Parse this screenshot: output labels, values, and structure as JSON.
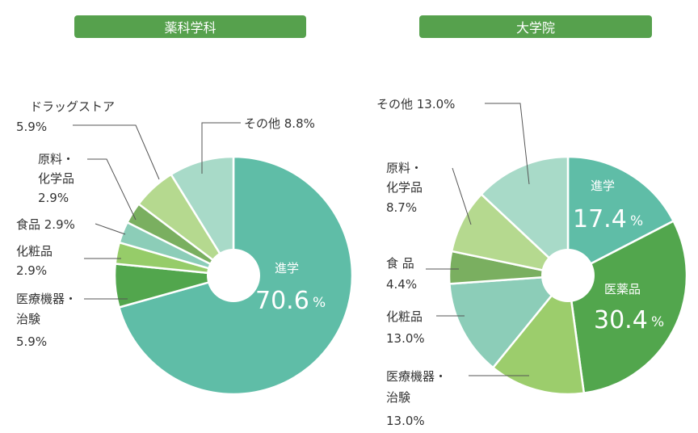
{
  "chart_data": [
    {
      "type": "pie",
      "title": "薬科学科",
      "slices": [
        {
          "label": "進学",
          "value": 70.6,
          "display": "70.6",
          "unit": "%",
          "color": "#5fbda7"
        },
        {
          "label": "医療機器・治験",
          "value": 5.9,
          "display": "5.9%",
          "color": "#52a64d"
        },
        {
          "label": "化粧品",
          "value": 2.9,
          "display": "2.9%",
          "color": "#96cc69"
        },
        {
          "label": "食品",
          "value": 2.9,
          "display": "2.9%",
          "color": "#8ccdb8"
        },
        {
          "label": "原料・化学品",
          "value": 2.9,
          "display": "2.9%",
          "color": "#7aaf60"
        },
        {
          "label": "ドラッグストア",
          "value": 5.9,
          "display": "5.9%",
          "color": "#b5d98f"
        },
        {
          "label": "その他",
          "value": 8.8,
          "display": "8.8%",
          "color": "#a8dac8"
        }
      ]
    },
    {
      "type": "pie",
      "title": "大学院",
      "slices": [
        {
          "label": "進学",
          "value": 17.4,
          "display": "17.4",
          "unit": "%",
          "color": "#5fbda7"
        },
        {
          "label": "医薬品",
          "value": 30.4,
          "display": "30.4",
          "unit": "%",
          "color": "#52a64d"
        },
        {
          "label": "医療機器・治験",
          "value": 13.0,
          "display": "13.0%",
          "color": "#9ccd6c"
        },
        {
          "label": "化粧品",
          "value": 13.0,
          "display": "13.0%",
          "color": "#8ccdb8"
        },
        {
          "label": "食品",
          "value": 4.4,
          "display": "4.4%",
          "color": "#7aaf60"
        },
        {
          "label": "原料・化学品",
          "value": 8.7,
          "display": "8.7%",
          "color": "#b5d98f"
        },
        {
          "label": "その他",
          "value": 13.0,
          "display": "13.0%",
          "color": "#a8dac8"
        }
      ]
    }
  ],
  "labels": {
    "left": {
      "shinkaku": "進学",
      "shinkaku_value": "70.6",
      "percent": "%",
      "drugstore_name": "ドラッグストア",
      "drugstore_value": "5.9%",
      "genryo_line1": "原料・",
      "genryo_line2": "化学品",
      "genryo_value": "2.9%",
      "shokuhin": "食品 2.9%",
      "keshohin_name": "化粧品",
      "keshohin_value": "2.9%",
      "iryo_line1": "医療機器・",
      "iryo_line2": "治験",
      "iryo_value": "5.9%",
      "sonota": "その他 8.8%"
    },
    "right": {
      "shinkaku": "進学",
      "shinkaku_value": "17.4",
      "iyakuhin": "医薬品",
      "iyakuhin_value": "30.4",
      "percent": "%",
      "sonota": "その他 13.0%",
      "genryo_line1": "原料・",
      "genryo_line2": "化学品",
      "genryo_value": "8.7%",
      "shokuhin_name": "食 品",
      "shokuhin_value": "4.4%",
      "keshohin_name": "化粧品",
      "keshohin_value": "13.0%",
      "iryo_line1": "医療機器・",
      "iryo_line2": "治験",
      "iryo_value": "13.0%"
    }
  }
}
